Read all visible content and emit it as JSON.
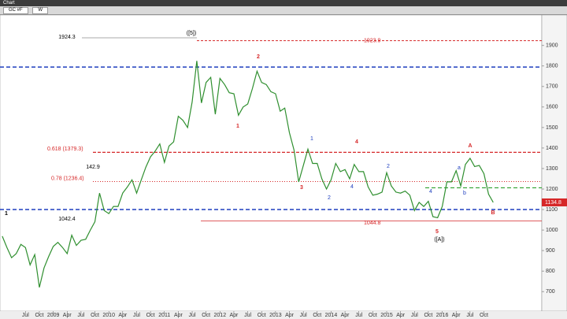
{
  "window": {
    "title": "Chart",
    "symbol": "GC #F",
    "interval": "W"
  },
  "chart_data": {
    "type": "line",
    "categories": [
      null,
      null,
      null,
      null,
      null,
      "Jul",
      null,
      null,
      "Oct",
      null,
      null,
      "2009",
      null,
      null,
      "Apr",
      null,
      null,
      "Jul",
      null,
      null,
      "Oct",
      null,
      null,
      "2010",
      null,
      null,
      "Apr",
      null,
      null,
      "Jul",
      null,
      null,
      "Oct",
      null,
      null,
      "2011",
      null,
      null,
      "Apr",
      null,
      null,
      "Jul",
      null,
      null,
      "Oct",
      null,
      null,
      "2012",
      null,
      null,
      "Apr",
      null,
      null,
      "Jul",
      null,
      null,
      "Oct",
      null,
      null,
      "2013",
      null,
      null,
      "Apr",
      null,
      null,
      "Jul",
      null,
      null,
      "Oct",
      null,
      null,
      "2014",
      null,
      null,
      "Apr",
      null,
      null,
      "Jul",
      null,
      null,
      "Oct",
      null,
      null,
      "2015",
      null,
      null,
      "Apr",
      null,
      null,
      "Jul",
      null,
      null,
      "Oct",
      null,
      null,
      "2016",
      null,
      null,
      "Apr",
      null,
      null,
      "Jul",
      null,
      null,
      "Oct",
      null,
      null
    ],
    "series": [
      {
        "name": "GC #F",
        "color": "#2f8f2f",
        "values": [
          970,
          915,
          865,
          885,
          930,
          915,
          830,
          880,
          720,
          815,
          870,
          920,
          940,
          915,
          885,
          975,
          925,
          950,
          955,
          1000,
          1040,
          1180,
          1095,
          1080,
          1115,
          1115,
          1180,
          1210,
          1245,
          1180,
          1245,
          1307,
          1357,
          1385,
          1420,
          1330,
          1410,
          1430,
          1555,
          1535,
          1500,
          1625,
          1825,
          1620,
          1720,
          1745,
          1565,
          1740,
          1710,
          1670,
          1665,
          1560,
          1600,
          1615,
          1690,
          1775,
          1720,
          1710,
          1675,
          1665,
          1580,
          1595,
          1475,
          1390,
          1235,
          1315,
          1395,
          1325,
          1325,
          1250,
          1200,
          1245,
          1325,
          1285,
          1295,
          1250,
          1320,
          1285,
          1285,
          1210,
          1170,
          1175,
          1185,
          1280,
          1215,
          1185,
          1180,
          1190,
          1170,
          1095,
          1135,
          1115,
          1140,
          1065,
          1060,
          1115,
          1235,
          1235,
          1290,
          1215,
          1320,
          1350,
          1310,
          1315,
          1275,
          1175,
          1135
        ]
      }
    ],
    "ylim": [
      616,
      2053
    ],
    "yticks": [
      700,
      800,
      900,
      1000,
      1100,
      1200,
      1300,
      1400,
      1500,
      1600,
      1700,
      1800,
      1900
    ],
    "last_price": 1134.8,
    "levels": [
      {
        "value": 1923.9,
        "label": "1923.9",
        "color": "#d62728"
      },
      {
        "value": 1795,
        "color": "#1f3fbf"
      },
      {
        "value": 1379.3,
        "label": "0.618 (1379.3)",
        "color": "#d62728"
      },
      {
        "value": 1236.4,
        "label": "0.78 (1236.4)",
        "color": "#d62728"
      },
      {
        "value": 1206,
        "color": "#2ca02c"
      },
      {
        "value": 1100,
        "color": "#1f3fbf"
      },
      {
        "value": 1044.8,
        "label": "1044.8",
        "color": "#d62728"
      }
    ],
    "annotations": [
      {
        "text": "1924.3",
        "color": "#000000"
      },
      {
        "text": "([5])",
        "color": "#000000"
      },
      {
        "text": "2",
        "color": "#d62728"
      },
      {
        "text": "1",
        "color": "#d62728"
      },
      {
        "text": "3",
        "color": "#d62728"
      },
      {
        "text": "4",
        "color": "#d62728"
      },
      {
        "text": "5",
        "color": "#d62728"
      },
      {
        "text": "([A])",
        "color": "#000000"
      },
      {
        "text": "A",
        "color": "#d62728"
      },
      {
        "text": "B",
        "color": "#d62728"
      },
      {
        "text": "142.9",
        "color": "#000000"
      },
      {
        "text": "1042.4",
        "color": "#000000"
      },
      {
        "text": "1",
        "color": "#000000"
      },
      {
        "text": "1",
        "color": "#1f3fbf"
      },
      {
        "text": "2",
        "color": "#1f3fbf"
      },
      {
        "text": "4",
        "color": "#1f3fbf"
      },
      {
        "text": "2",
        "color": "#1f3fbf"
      },
      {
        "text": "4",
        "color": "#1f3fbf"
      },
      {
        "text": "a",
        "color": "#1f3fbf"
      },
      {
        "text": "b",
        "color": "#1f3fbf"
      }
    ]
  }
}
